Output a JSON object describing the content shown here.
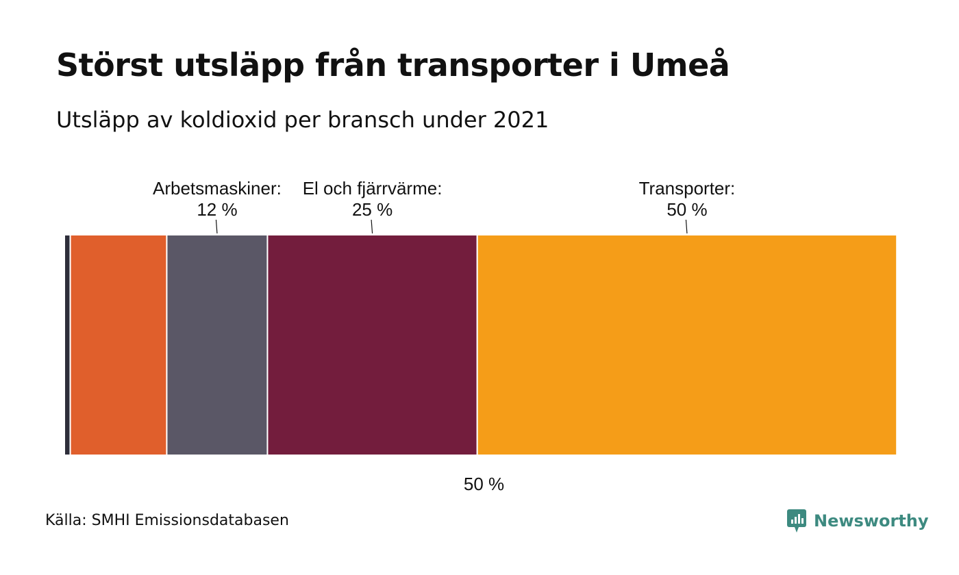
{
  "header": {
    "title": "Störst utsläpp från transporter i Umeå",
    "subtitle": "Utsläpp av koldioxid per bransch under 2021"
  },
  "footer": {
    "source": "Källa: SMHI Emissionsdatabasen",
    "brand": "Newsworthy"
  },
  "colors": {
    "small_segment": "#2e2e3a",
    "segment_2": "#e05f2c",
    "arbetsmaskiner": "#5a5766",
    "el_och_fjarrvarme": "#731d3d",
    "transporter": "#f59d18",
    "brand": "#3d8a80"
  },
  "chart_data": {
    "type": "stacked-bar",
    "orientation": "horizontal",
    "title": "Störst utsläpp från transporter i Umeå",
    "subtitle": "Utsläpp av koldioxid per bransch under 2021",
    "unit": "%",
    "total": 100,
    "segments": [
      {
        "name": "",
        "value": 0.7,
        "color_key": "small_segment",
        "label": null
      },
      {
        "name": "",
        "value": 11.5,
        "color_key": "segment_2",
        "label": null
      },
      {
        "name": "Arbetsmaskiner",
        "value": 12,
        "color_key": "arbetsmaskiner",
        "label": {
          "name": "Arbetsmaskiner:",
          "value": "12 %"
        }
      },
      {
        "name": "El och fjärrvärme",
        "value": 25,
        "color_key": "el_och_fjarrvarme",
        "label": {
          "name": "El och fjärrvärme:",
          "value": "25 %"
        }
      },
      {
        "name": "Transporter",
        "value": 50,
        "color_key": "transporter",
        "label": {
          "name": "Transporter:",
          "value": "50 %"
        }
      }
    ],
    "axis": {
      "ticks": [
        {
          "value": 50,
          "label": "50 %"
        }
      ]
    }
  }
}
